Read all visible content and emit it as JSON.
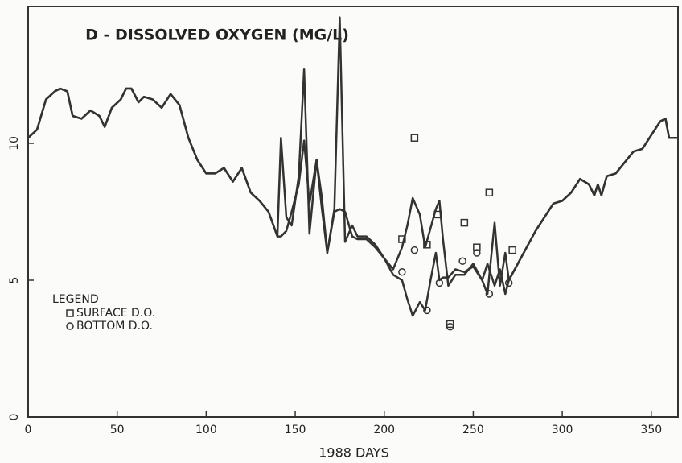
{
  "chart_data": {
    "type": "line",
    "title": "D - DISSOLVED OXYGEN (MG/L)",
    "xlabel": "1988 DAYS",
    "legend_title": "LEGEND",
    "xlim": [
      0,
      365
    ],
    "ylim": [
      0,
      15
    ],
    "xticks": [
      0,
      50,
      100,
      150,
      200,
      250,
      300,
      350
    ],
    "yticks": [
      0,
      5,
      10
    ],
    "x": [
      0,
      5,
      10,
      15,
      18,
      22,
      25,
      30,
      35,
      40,
      43,
      47,
      52,
      55,
      58,
      62,
      65,
      70,
      75,
      80,
      85,
      90,
      95,
      100,
      105,
      110,
      115,
      120,
      125,
      130,
      135,
      140,
      142,
      145,
      148,
      152,
      155,
      158,
      162,
      165,
      168,
      172,
      175,
      178,
      182,
      185,
      190,
      195,
      200,
      205,
      210,
      213,
      216,
      220,
      223,
      226,
      229,
      231,
      233,
      236,
      240,
      245,
      250,
      255,
      258,
      262,
      265,
      268,
      270,
      275,
      280,
      285,
      290,
      295,
      300,
      305,
      310,
      315,
      318,
      320,
      322,
      325,
      330,
      335,
      340,
      345,
      350,
      355,
      358,
      360,
      365
    ],
    "series": [
      {
        "color": "#333333",
        "values": [
          10.2,
          10.5,
          11.6,
          11.9,
          12.0,
          11.9,
          11.0,
          10.9,
          11.2,
          11.0,
          10.6,
          11.3,
          11.6,
          12.0,
          12.0,
          11.5,
          11.7,
          11.6,
          11.3,
          11.8,
          11.4,
          10.2,
          9.4,
          8.9,
          8.9,
          9.1,
          8.6,
          9.1,
          8.2,
          7.9,
          7.5,
          6.6,
          10.2,
          7.3,
          7.0,
          8.8,
          12.7,
          6.7,
          9.4,
          7.6,
          6.0,
          7.6,
          14.6,
          6.4,
          7.0,
          6.6,
          6.6,
          6.3,
          5.8,
          5.4,
          6.2,
          7.0,
          8.0,
          7.4,
          6.2,
          6.9,
          7.6,
          7.9,
          6.5,
          4.8,
          5.2,
          5.2,
          5.6,
          5.0,
          4.5,
          7.1,
          4.8,
          6.0,
          5.0,
          5.6,
          6.2,
          6.8,
          7.3,
          7.8,
          7.9,
          8.2,
          8.7,
          8.5,
          8.1,
          8.5,
          8.1,
          8.8,
          8.9,
          9.3,
          9.7,
          9.8,
          10.3,
          10.8,
          10.9,
          10.2,
          10.2
        ]
      },
      {
        "color": "#333333",
        "values": [
          10.2,
          10.5,
          11.6,
          11.9,
          12.0,
          11.9,
          11.0,
          10.9,
          11.2,
          11.0,
          10.6,
          11.3,
          11.6,
          12.0,
          12.0,
          11.5,
          11.7,
          11.6,
          11.3,
          11.8,
          11.4,
          10.2,
          9.4,
          8.9,
          8.9,
          9.1,
          8.6,
          9.1,
          8.2,
          7.9,
          7.5,
          6.6,
          6.6,
          6.8,
          7.5,
          8.5,
          10.1,
          7.8,
          9.4,
          8.0,
          6.0,
          7.5,
          7.6,
          7.5,
          6.6,
          6.5,
          6.5,
          6.2,
          5.8,
          5.2,
          5.0,
          4.3,
          3.7,
          4.2,
          3.9,
          5.0,
          6.0,
          5.0,
          5.1,
          5.1,
          5.4,
          5.3,
          5.5,
          5.0,
          5.6,
          4.8,
          5.4,
          4.5,
          5.0,
          5.6,
          6.2,
          6.8,
          7.3,
          7.8,
          7.9,
          8.2,
          8.7,
          8.5,
          8.1,
          8.5,
          8.1,
          8.8,
          8.9,
          9.3,
          9.7,
          9.8,
          10.3,
          10.8,
          10.9,
          10.2,
          10.2
        ]
      }
    ],
    "points": [
      {
        "name": "SURFACE D.O.",
        "marker": "square",
        "color": "#333333",
        "x": [
          210,
          217,
          224,
          230,
          237,
          245,
          252,
          259,
          272
        ],
        "values": [
          6.5,
          10.2,
          6.3,
          7.4,
          3.4,
          7.1,
          6.2,
          8.2,
          6.1
        ]
      },
      {
        "name": "BOTTOM D.O.",
        "marker": "circle",
        "color": "#333333",
        "x": [
          210,
          217,
          224,
          231,
          237,
          244,
          252,
          259,
          270
        ],
        "values": [
          5.3,
          6.1,
          3.9,
          4.9,
          3.3,
          5.7,
          6.0,
          4.5,
          4.9
        ]
      }
    ]
  }
}
